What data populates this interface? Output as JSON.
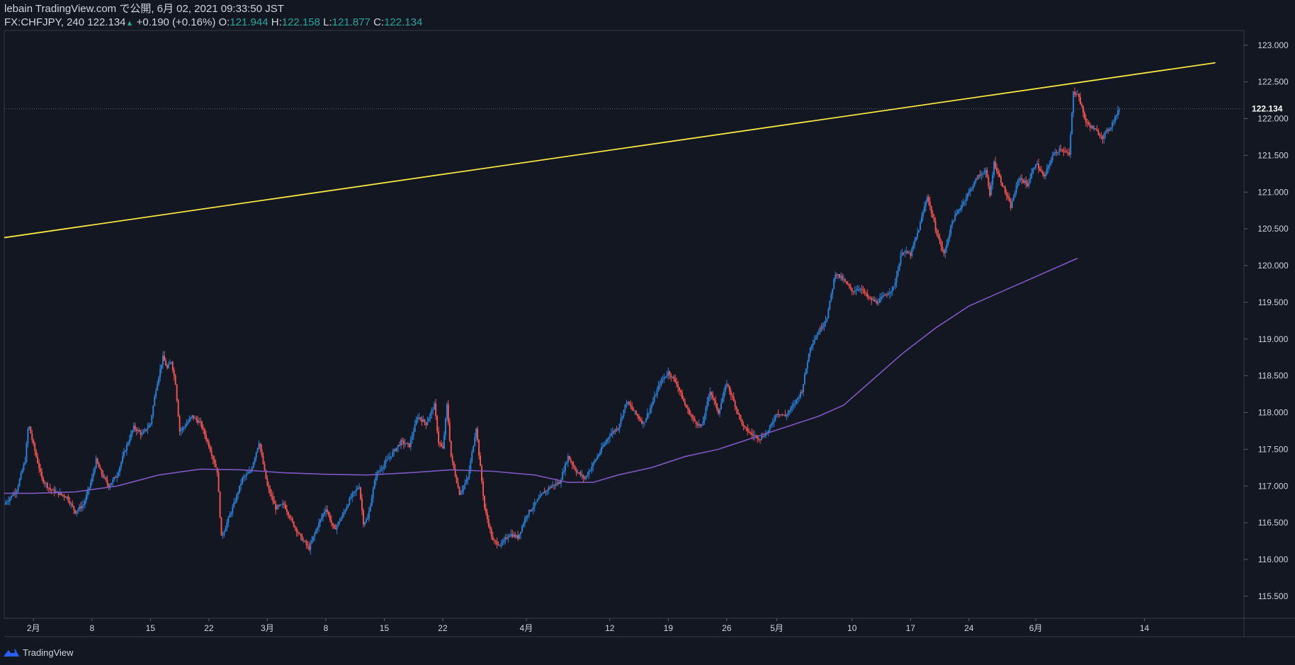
{
  "header": {
    "publisher": "lebain TradingView.com で公開, 6月 02, 2021 09:33:50 JST",
    "symbol": "FX:CHFJPY, 240",
    "last": "122.134",
    "change": "+0.190 (+0.16%)",
    "o_label": "O:",
    "o_value": "121.944",
    "h_label": "H:",
    "h_value": "122.158",
    "l_label": "L:",
    "l_value": "121.877",
    "c_label": "C:",
    "c_value": "122.134"
  },
  "footer": {
    "brand": "TradingView"
  },
  "colors": {
    "background": "#131722",
    "up": "#2a7fd4",
    "down": "#ef5350",
    "trendline": "#f5e642",
    "ma": "#7e57c2",
    "axis_text": "#d1d4dc",
    "border": "#363a45"
  },
  "chart_data": {
    "type": "candlestick",
    "symbol": "FX:CHFJPY",
    "interval": "240",
    "y_axis": {
      "range": [
        115.2,
        123.2
      ],
      "ticks": [
        "123.000",
        "122.500",
        "122.000",
        "121.500",
        "121.000",
        "120.500",
        "120.000",
        "119.500",
        "119.000",
        "118.500",
        "118.000",
        "117.500",
        "117.000",
        "116.500",
        "116.000",
        "115.500"
      ]
    },
    "x_axis": {
      "day_range": [
        -3.5,
        130
      ],
      "ticks": [
        {
          "label": "2月",
          "day": 0
        },
        {
          "label": "8",
          "day": 7
        },
        {
          "label": "15",
          "day": 14
        },
        {
          "label": "22",
          "day": 21
        },
        {
          "label": "3月",
          "day": 28
        },
        {
          "label": "8",
          "day": 35
        },
        {
          "label": "15",
          "day": 42
        },
        {
          "label": "22",
          "day": 49
        },
        {
          "label": "4月",
          "day": 59
        },
        {
          "label": "12",
          "day": 69
        },
        {
          "label": "19",
          "day": 76
        },
        {
          "label": "26",
          "day": 83
        },
        {
          "label": "5月",
          "day": 89
        },
        {
          "label": "10",
          "day": 98
        },
        {
          "label": "17",
          "day": 105
        },
        {
          "label": "24",
          "day": 112
        },
        {
          "label": "6月",
          "day": 120
        },
        {
          "label": "14",
          "day": 133
        }
      ]
    },
    "price_series": {
      "name": "CHFJPY 240 close path",
      "points": [
        [
          -3.5,
          116.75
        ],
        [
          -2,
          116.95
        ],
        [
          -1,
          117.35
        ],
        [
          -0.6,
          117.85
        ],
        [
          0,
          117.55
        ],
        [
          1,
          117.1
        ],
        [
          2,
          116.95
        ],
        [
          3,
          116.9
        ],
        [
          4,
          116.85
        ],
        [
          5,
          116.65
        ],
        [
          6,
          116.75
        ],
        [
          7,
          117.1
        ],
        [
          7.5,
          117.35
        ],
        [
          8,
          117.2
        ],
        [
          9,
          117.0
        ],
        [
          10,
          117.15
        ],
        [
          11,
          117.5
        ],
        [
          12,
          117.8
        ],
        [
          13,
          117.7
        ],
        [
          14,
          117.85
        ],
        [
          14.7,
          118.35
        ],
        [
          15.5,
          118.75
        ],
        [
          16,
          118.6
        ],
        [
          16.5,
          118.7
        ],
        [
          17,
          118.4
        ],
        [
          17.5,
          117.75
        ],
        [
          18,
          117.8
        ],
        [
          19,
          117.95
        ],
        [
          20,
          117.85
        ],
        [
          21,
          117.55
        ],
        [
          22,
          117.2
        ],
        [
          22.5,
          116.3
        ],
        [
          23,
          116.45
        ],
        [
          24,
          116.75
        ],
        [
          25,
          117.1
        ],
        [
          26,
          117.2
        ],
        [
          27,
          117.6
        ],
        [
          28,
          117.0
        ],
        [
          29,
          116.7
        ],
        [
          30,
          116.75
        ],
        [
          31,
          116.5
        ],
        [
          32,
          116.3
        ],
        [
          33,
          116.15
        ],
        [
          34,
          116.45
        ],
        [
          35,
          116.7
        ],
        [
          36,
          116.4
        ],
        [
          37,
          116.6
        ],
        [
          38,
          116.85
        ],
        [
          39,
          117.0
        ],
        [
          39.5,
          116.5
        ],
        [
          40,
          116.55
        ],
        [
          41,
          117.15
        ],
        [
          42,
          117.3
        ],
        [
          43,
          117.45
        ],
        [
          44,
          117.6
        ],
        [
          45,
          117.55
        ],
        [
          46,
          117.95
        ],
        [
          47,
          117.85
        ],
        [
          48,
          118.1
        ],
        [
          48.5,
          117.6
        ],
        [
          49,
          117.5
        ],
        [
          49.5,
          118.1
        ],
        [
          50,
          117.4
        ],
        [
          51,
          116.9
        ],
        [
          52,
          117.1
        ],
        [
          53,
          117.8
        ],
        [
          54,
          116.7
        ],
        [
          55,
          116.25
        ],
        [
          56,
          116.2
        ],
        [
          57,
          116.35
        ],
        [
          58,
          116.3
        ],
        [
          59,
          116.6
        ],
        [
          60,
          116.75
        ],
        [
          61,
          116.9
        ],
        [
          62,
          117.0
        ],
        [
          63,
          117.05
        ],
        [
          64,
          117.4
        ],
        [
          65,
          117.2
        ],
        [
          66,
          117.1
        ],
        [
          67,
          117.3
        ],
        [
          68,
          117.5
        ],
        [
          69,
          117.7
        ],
        [
          70,
          117.8
        ],
        [
          71,
          118.15
        ],
        [
          72,
          118.0
        ],
        [
          73,
          117.85
        ],
        [
          74,
          118.1
        ],
        [
          75,
          118.4
        ],
        [
          76,
          118.55
        ],
        [
          77,
          118.4
        ],
        [
          78,
          118.1
        ],
        [
          79,
          117.9
        ],
        [
          80,
          117.8
        ],
        [
          81,
          118.3
        ],
        [
          82,
          118.0
        ],
        [
          83,
          118.4
        ],
        [
          84,
          118.1
        ],
        [
          85,
          117.8
        ],
        [
          86,
          117.7
        ],
        [
          87,
          117.65
        ],
        [
          88,
          117.75
        ],
        [
          89,
          118.0
        ],
        [
          90,
          117.95
        ],
        [
          91,
          118.1
        ],
        [
          92,
          118.3
        ],
        [
          93,
          118.9
        ],
        [
          94,
          119.1
        ],
        [
          95,
          119.3
        ],
        [
          96,
          119.9
        ],
        [
          97,
          119.8
        ],
        [
          98,
          119.65
        ],
        [
          99,
          119.7
        ],
        [
          100,
          119.55
        ],
        [
          101,
          119.5
        ],
        [
          102,
          119.6
        ],
        [
          103,
          119.7
        ],
        [
          104,
          120.2
        ],
        [
          105,
          120.15
        ],
        [
          106,
          120.5
        ],
        [
          107,
          120.95
        ],
        [
          108,
          120.5
        ],
        [
          109,
          120.15
        ],
        [
          110,
          120.6
        ],
        [
          111,
          120.8
        ],
        [
          112,
          121.0
        ],
        [
          113,
          121.2
        ],
        [
          114,
          121.3
        ],
        [
          114.5,
          120.95
        ],
        [
          115,
          121.4
        ],
        [
          116,
          121.1
        ],
        [
          117,
          120.8
        ],
        [
          118,
          121.2
        ],
        [
          119,
          121.1
        ],
        [
          120,
          121.4
        ],
        [
          121,
          121.2
        ],
        [
          122,
          121.5
        ],
        [
          123,
          121.6
        ],
        [
          124,
          121.5
        ],
        [
          124.5,
          122.35
        ],
        [
          125,
          122.35
        ],
        [
          126,
          121.95
        ],
        [
          127,
          121.85
        ],
        [
          128,
          121.75
        ],
        [
          129,
          121.9
        ],
        [
          130,
          122.13
        ]
      ]
    },
    "moving_average": {
      "name": "MA",
      "points": [
        [
          -3.5,
          116.9
        ],
        [
          0,
          116.9
        ],
        [
          5,
          116.92
        ],
        [
          10,
          117.0
        ],
        [
          15,
          117.15
        ],
        [
          20,
          117.23
        ],
        [
          25,
          117.22
        ],
        [
          30,
          117.18
        ],
        [
          35,
          117.16
        ],
        [
          40,
          117.15
        ],
        [
          45,
          117.18
        ],
        [
          50,
          117.22
        ],
        [
          55,
          117.2
        ],
        [
          60,
          117.15
        ],
        [
          64,
          117.05
        ],
        [
          67,
          117.05
        ],
        [
          70,
          117.15
        ],
        [
          74,
          117.25
        ],
        [
          78,
          117.4
        ],
        [
          82,
          117.5
        ],
        [
          86,
          117.65
        ],
        [
          90,
          117.8
        ],
        [
          94,
          117.95
        ],
        [
          97,
          118.1
        ],
        [
          100,
          118.4
        ],
        [
          104,
          118.8
        ],
        [
          108,
          119.15
        ],
        [
          112,
          119.45
        ],
        [
          116,
          119.65
        ],
        [
          120,
          119.85
        ],
        [
          123,
          120.0
        ],
        [
          125,
          120.1
        ]
      ]
    },
    "trendline": {
      "from": {
        "day": -3.5,
        "price": 120.38
      },
      "to": {
        "day": 141.5,
        "price": 122.76
      }
    },
    "last_price": {
      "value": 122.134,
      "label": "122.134"
    }
  }
}
